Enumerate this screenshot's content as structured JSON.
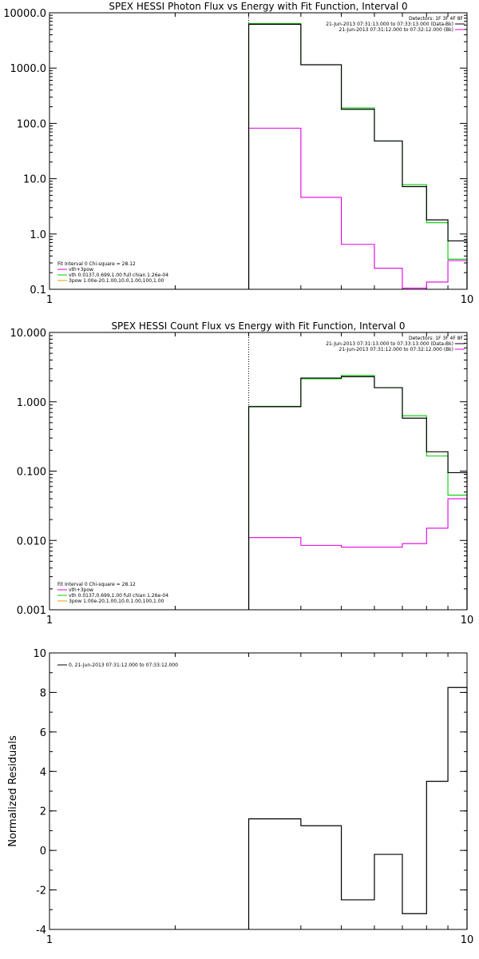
{
  "colors": {
    "data": "#000000",
    "total": "#e000e0",
    "fit_vth": "#00cc00",
    "fit_3pow": "#d9a000",
    "background": "#ff00ff",
    "frame": "#000000"
  },
  "chart_data": [
    {
      "id": "photon",
      "type": "line",
      "title": "SPEX HESSI Photon Flux vs Energy with Fit Function, Interval 0",
      "xlim": [
        1,
        10
      ],
      "ylim": [
        0.1,
        10000
      ],
      "xscale": "log",
      "yscale": "log",
      "xticks": [
        {
          "v": 1,
          "label": "1"
        },
        {
          "v": 10,
          "label": "10"
        }
      ],
      "yticks": [
        {
          "v": 0.1,
          "label": "0.1"
        },
        {
          "v": 1,
          "label": "1.0"
        },
        {
          "v": 10,
          "label": "10.0"
        },
        {
          "v": 100,
          "label": "100.0"
        },
        {
          "v": 1000,
          "label": "1000.0"
        },
        {
          "v": 10000,
          "label": "10000.0"
        }
      ],
      "edges": [
        3,
        4,
        5,
        6,
        7,
        8,
        9,
        10
      ],
      "vline_x": 3,
      "legend_right": {
        "header": "Detectors: 1F 3F 4F 8F",
        "entries": [
          {
            "text": "21-Jun-2013 07:31:13.000 to 07:33:13.000 (Data-Bk)",
            "color": "#000000"
          },
          {
            "text": "21-Jun-2013 07:31:12.000 to 07:32:12.000 (Bk)",
            "color": "#e000e0"
          }
        ]
      },
      "legend_left": {
        "header": "Fit Interval 0   Chi-square = 28.12",
        "entries": [
          {
            "text": "vth+3pow",
            "color": "#e000e0"
          },
          {
            "text": "vth 0.0137,0.699,1.00  full chian 1.26e-04",
            "color": "#00cc00"
          },
          {
            "text": "3pow 1.00e-20,1.00,10.0,1.00,100,1.00",
            "color": "#d9a000"
          }
        ]
      },
      "series": [
        {
          "role": "data",
          "color": "#000000",
          "values": [
            6200,
            1150,
            180,
            48,
            7.2,
            1.8,
            0.75
          ]
        },
        {
          "role": "fit",
          "color": "#00cc00",
          "values": [
            6400,
            1150,
            190,
            48,
            7.8,
            1.6,
            0.35
          ]
        },
        {
          "role": "background",
          "color": "#e000e0",
          "values": [
            82,
            4.6,
            0.65,
            0.24,
            0.105,
            0.135,
            0.33
          ]
        }
      ]
    },
    {
      "id": "count",
      "type": "line",
      "title": "SPEX HESSI Count Flux vs Energy with Fit Function, Interval 0",
      "xlim": [
        1,
        10
      ],
      "ylim": [
        0.001,
        10
      ],
      "xscale": "log",
      "yscale": "log",
      "xticks": [
        {
          "v": 1,
          "label": "1"
        },
        {
          "v": 10,
          "label": "10"
        }
      ],
      "yticks": [
        {
          "v": 0.001,
          "label": "0.001"
        },
        {
          "v": 0.01,
          "label": "0.010"
        },
        {
          "v": 0.1,
          "label": "0.100"
        },
        {
          "v": 1,
          "label": "1.000"
        },
        {
          "v": 10,
          "label": "10.000"
        }
      ],
      "edges": [
        3,
        4,
        5,
        6,
        7,
        8,
        9,
        10
      ],
      "vline_x": 3,
      "legend_right": {
        "header": "Detectors: 1F 3F 4F 8F",
        "entries": [
          {
            "text": "21-Jun-2013 07:31:13.000 to 07:33:13.000 (Data-Bk)",
            "color": "#000000"
          },
          {
            "text": "21-Jun-2013 07:31:12.000 to 07:32:12.000 (Bk)",
            "color": "#e000e0"
          }
        ]
      },
      "legend_left": {
        "header": "Fit Interval 0   Chi-square = 28.12",
        "entries": [
          {
            "text": "vth+3pow",
            "color": "#e000e0"
          },
          {
            "text": "vth 0.0137,0.699,1.00  full chian 1.26e-04",
            "color": "#00cc00"
          },
          {
            "text": "3pow 1.00e-20,1.00,10.0,1.00,100,1.00",
            "color": "#d9a000"
          }
        ]
      },
      "series": [
        {
          "role": "data",
          "color": "#000000",
          "values": [
            0.85,
            2.2,
            2.3,
            1.6,
            0.58,
            0.19,
            0.095
          ]
        },
        {
          "role": "fit",
          "color": "#00cc00",
          "values": [
            0.86,
            2.15,
            2.4,
            1.6,
            0.63,
            0.165,
            0.045
          ]
        },
        {
          "role": "background",
          "color": "#e000e0",
          "values": [
            0.011,
            0.0085,
            0.008,
            0.008,
            0.009,
            0.015,
            0.04
          ]
        }
      ]
    },
    {
      "id": "residuals",
      "type": "line",
      "title": "",
      "ylabel": "Normalized Residuals",
      "xlim": [
        1,
        10
      ],
      "ylim": [
        -4,
        10
      ],
      "xscale": "log",
      "yscale": "linear",
      "xticks": [
        {
          "v": 1,
          "label": "1"
        },
        {
          "v": 10,
          "label": "10"
        }
      ],
      "yticks": [
        {
          "v": -4,
          "label": "-4"
        },
        {
          "v": -2,
          "label": "-2"
        },
        {
          "v": 0,
          "label": "0"
        },
        {
          "v": 2,
          "label": "2"
        },
        {
          "v": 4,
          "label": "4"
        },
        {
          "v": 6,
          "label": "6"
        },
        {
          "v": 8,
          "label": "8"
        },
        {
          "v": 10,
          "label": "10"
        }
      ],
      "edges": [
        3,
        4,
        5,
        6,
        7,
        8,
        9,
        10
      ],
      "legend_left": {
        "header": "",
        "entries": [
          {
            "text": "0, 21-Jun-2013 07:31:12.000 to 07:33:12.000",
            "color": "#000000"
          }
        ]
      },
      "series": [
        {
          "role": "data",
          "color": "#000000",
          "values": [
            1.6,
            1.25,
            -2.5,
            -0.2,
            -3.2,
            3.5,
            8.25
          ]
        }
      ]
    }
  ]
}
